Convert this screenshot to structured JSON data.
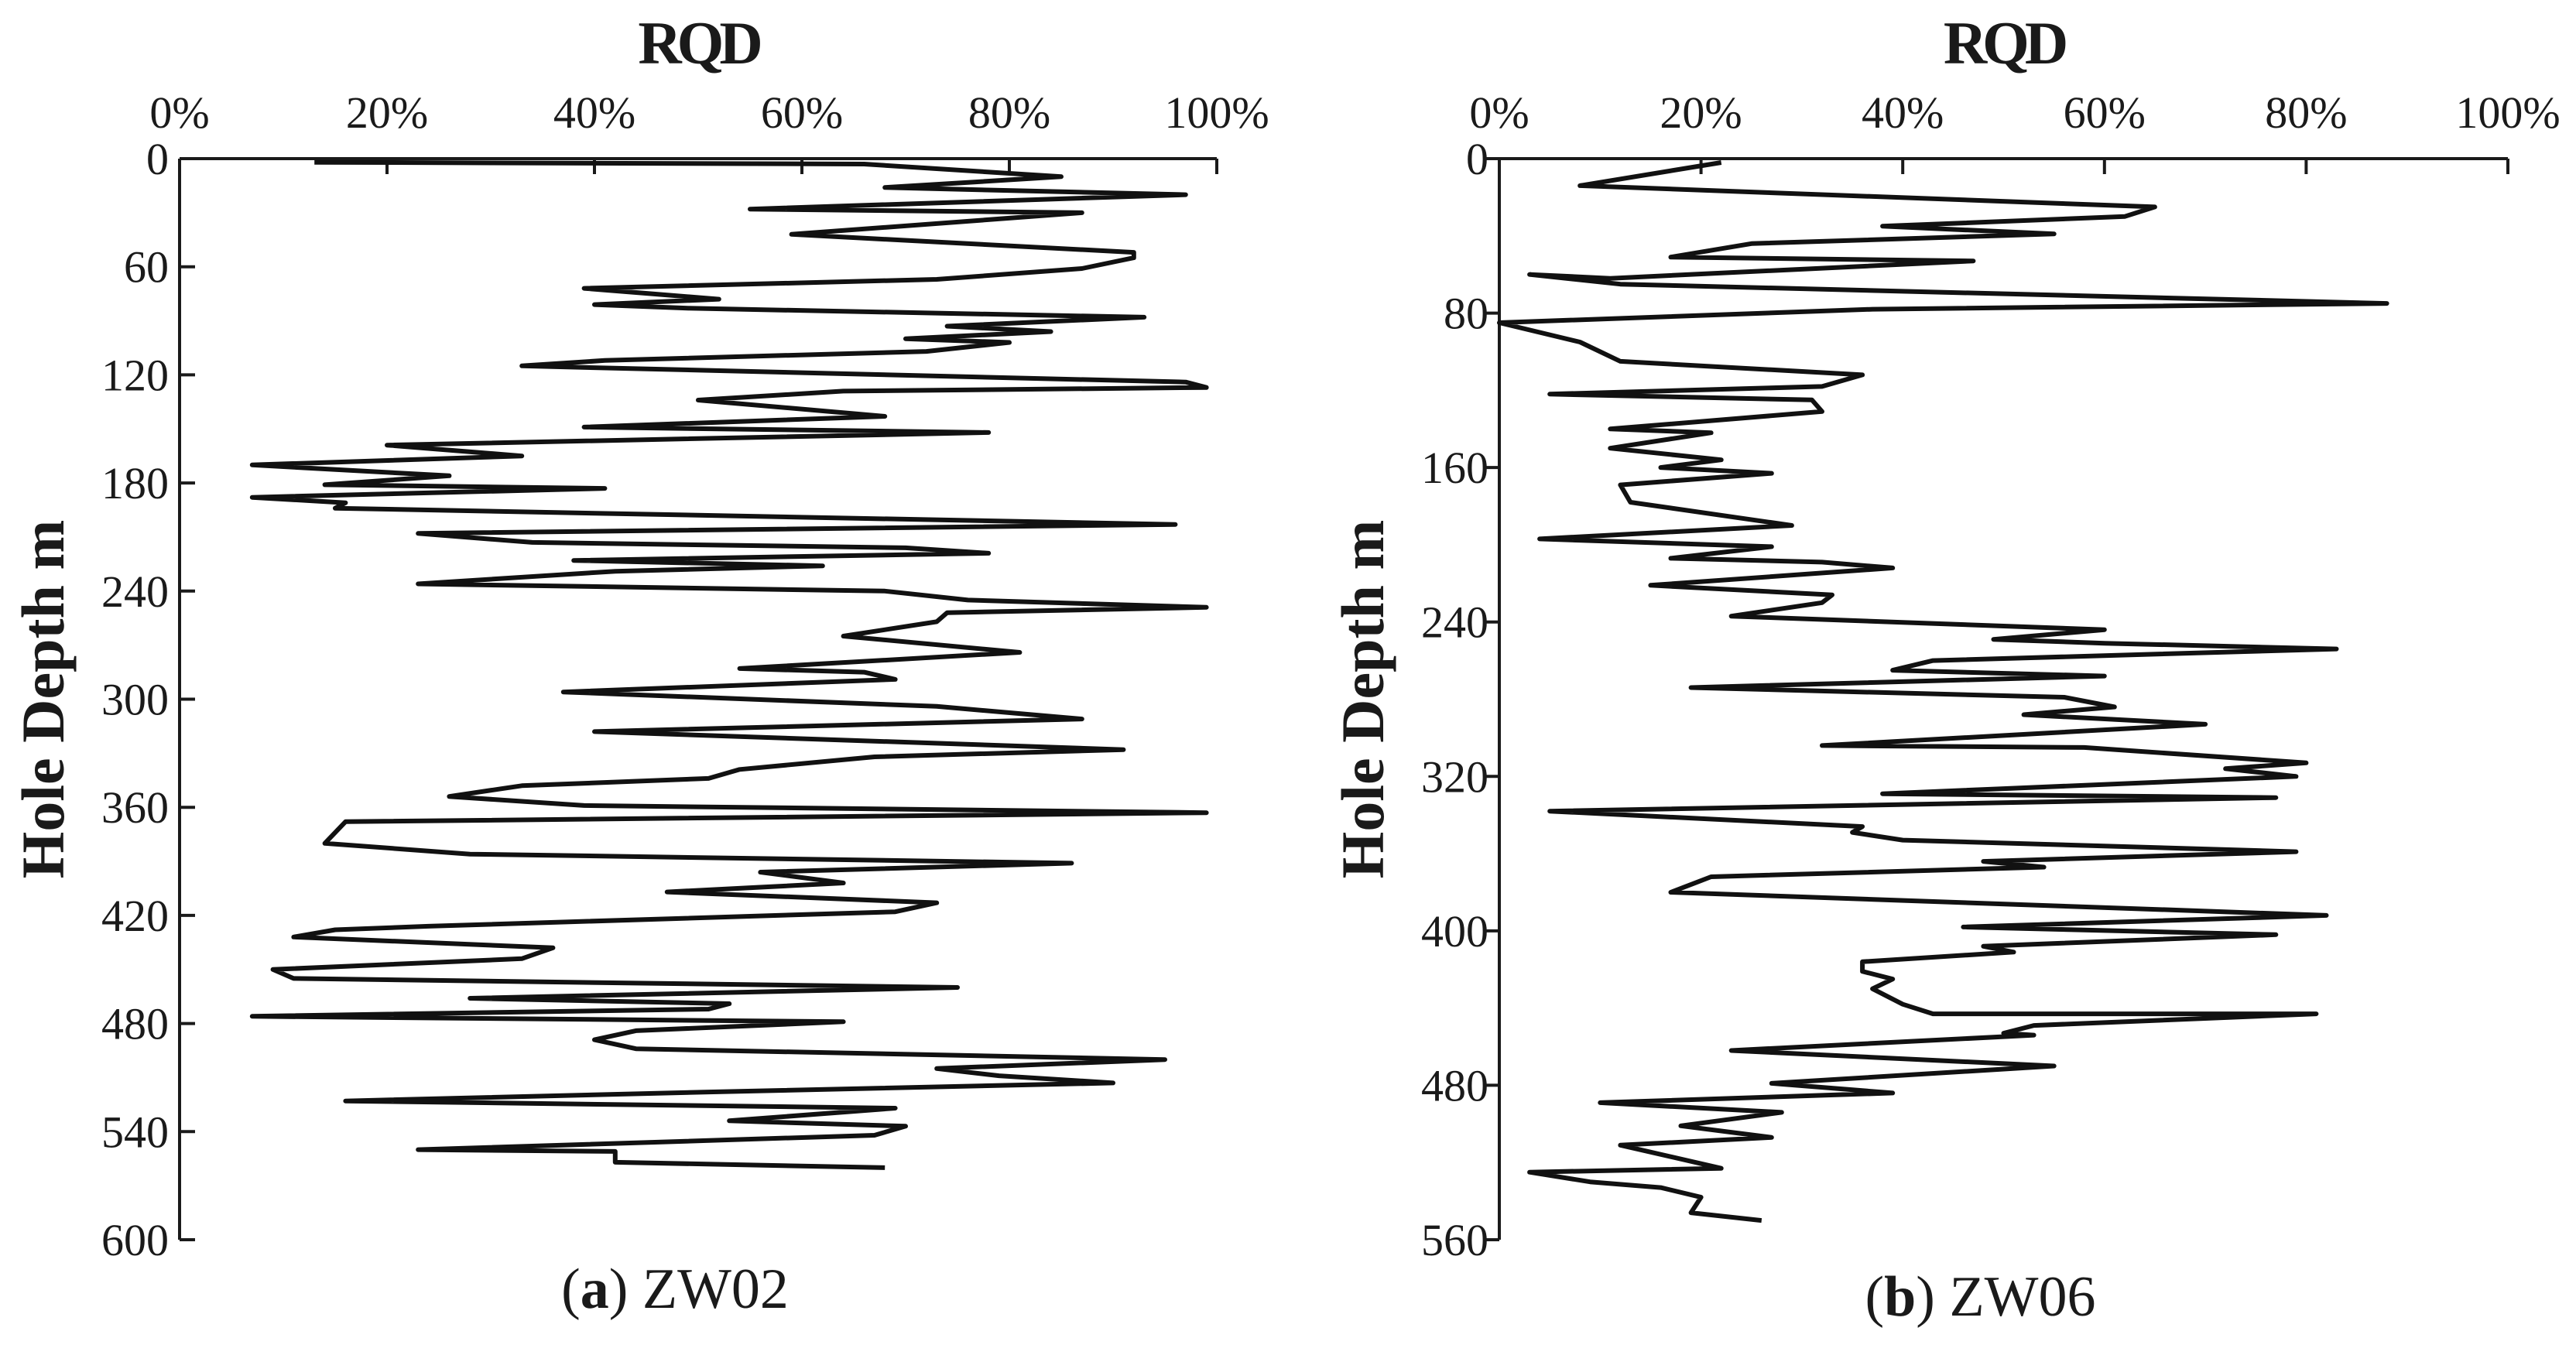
{
  "chart_data": [
    {
      "type": "line",
      "panel_label": "(a)",
      "caption": "ZW02",
      "title": "RQD",
      "xlabel": "RQD",
      "ylabel": "Hole Depth  m",
      "xlim": [
        0,
        100
      ],
      "ylim": [
        0,
        600
      ],
      "y_inverted": true,
      "x_axis_position": "top",
      "x_ticks": [
        "0%",
        "20%",
        "40%",
        "60%",
        "80%",
        "100%"
      ],
      "y_ticks": [
        "0",
        "60",
        "120",
        "180",
        "240",
        "300",
        "360",
        "420",
        "480",
        "540",
        "600"
      ],
      "series": [
        {
          "points": [
            [
              13,
              2
            ],
            [
              66,
              3
            ],
            [
              85,
              10
            ],
            [
              68,
              16
            ],
            [
              97,
              20
            ],
            [
              55,
              28
            ],
            [
              87,
              30
            ],
            [
              59,
              42
            ],
            [
              92,
              52
            ],
            [
              92,
              55
            ],
            [
              87,
              61
            ],
            [
              73,
              67
            ],
            [
              39,
              72
            ],
            [
              52,
              78
            ],
            [
              40,
              81
            ],
            [
              49,
              83
            ],
            [
              93,
              88
            ],
            [
              74,
              93
            ],
            [
              84,
              96
            ],
            [
              70,
              100
            ],
            [
              80,
              102
            ],
            [
              72,
              107
            ],
            [
              41,
              112
            ],
            [
              33,
              115
            ],
            [
              97,
              124
            ],
            [
              99,
              127
            ],
            [
              64,
              129
            ],
            [
              50,
              134
            ],
            [
              68,
              143
            ],
            [
              39,
              149
            ],
            [
              78,
              152
            ],
            [
              20,
              159
            ],
            [
              33,
              165
            ],
            [
              7,
              170
            ],
            [
              26,
              176
            ],
            [
              14,
              181
            ],
            [
              41,
              183
            ],
            [
              7,
              188
            ],
            [
              16,
              191
            ],
            [
              15,
              194
            ],
            [
              96,
              203
            ],
            [
              23,
              208
            ],
            [
              34,
              213
            ],
            [
              70,
              216
            ],
            [
              78,
              219
            ],
            [
              38,
              223
            ],
            [
              62,
              226
            ],
            [
              42,
              229
            ],
            [
              23,
              236
            ],
            [
              68,
              240
            ],
            [
              76,
              245
            ],
            [
              99,
              249
            ],
            [
              74,
              252
            ],
            [
              73,
              257
            ],
            [
              64,
              265
            ],
            [
              81,
              274
            ],
            [
              54,
              283
            ],
            [
              66,
              285
            ],
            [
              69,
              289
            ],
            [
              37,
              296
            ],
            [
              73,
              304
            ],
            [
              87,
              311
            ],
            [
              40,
              318
            ],
            [
              91,
              328
            ],
            [
              67,
              332
            ],
            [
              54,
              339
            ],
            [
              51,
              344
            ],
            [
              33,
              348
            ],
            [
              26,
              354
            ],
            [
              39,
              359
            ],
            [
              99,
              363
            ],
            [
              16,
              368
            ],
            [
              14,
              380
            ],
            [
              28,
              386
            ],
            [
              86,
              391
            ],
            [
              56,
              396
            ],
            [
              64,
              402
            ],
            [
              47,
              407
            ],
            [
              73,
              413
            ],
            [
              69,
              418
            ],
            [
              24,
              426
            ],
            [
              15,
              428
            ],
            [
              11,
              432
            ],
            [
              36,
              438
            ],
            [
              33,
              444
            ],
            [
              9,
              450
            ],
            [
              11,
              455
            ],
            [
              75,
              460
            ],
            [
              28,
              466
            ],
            [
              53,
              469
            ],
            [
              51,
              472
            ],
            [
              7,
              476
            ],
            [
              64,
              479
            ],
            [
              44,
              484
            ],
            [
              40,
              489
            ],
            [
              44,
              494
            ],
            [
              95,
              500
            ],
            [
              73,
              505
            ],
            [
              79,
              509
            ],
            [
              90,
              513
            ],
            [
              51,
              518
            ],
            [
              16,
              523
            ],
            [
              69,
              527
            ],
            [
              53,
              534
            ],
            [
              70,
              537
            ],
            [
              67,
              542
            ],
            [
              23,
              550
            ],
            [
              42,
              551
            ],
            [
              42,
              557
            ],
            [
              68,
              560
            ]
          ]
        }
      ]
    },
    {
      "type": "line",
      "panel_label": "(b)",
      "caption": "ZW06",
      "title": "RQD",
      "xlabel": "RQD",
      "ylabel": "Hole Depth  m",
      "xlim": [
        0,
        100
      ],
      "ylim": [
        0,
        560
      ],
      "y_inverted": true,
      "x_axis_position": "top",
      "x_ticks": [
        "0%",
        "20%",
        "40%",
        "60%",
        "80%",
        "100%"
      ],
      "y_ticks": [
        "0",
        "80",
        "160",
        "240",
        "320",
        "400",
        "480",
        "560"
      ],
      "series": [
        {
          "points": [
            [
              22,
              2
            ],
            [
              8,
              14
            ],
            [
              65,
              25
            ],
            [
              62,
              30
            ],
            [
              38,
              35
            ],
            [
              55,
              39
            ],
            [
              25,
              44
            ],
            [
              17,
              51
            ],
            [
              47,
              53
            ],
            [
              11,
              62
            ],
            [
              3,
              60
            ],
            [
              12,
              65
            ],
            [
              88,
              75
            ],
            [
              37,
              78
            ],
            [
              0,
              85
            ],
            [
              8,
              95
            ],
            [
              12,
              105
            ],
            [
              36,
              112
            ],
            [
              32,
              118
            ],
            [
              5,
              122
            ],
            [
              31,
              125
            ],
            [
              32,
              131
            ],
            [
              11,
              140
            ],
            [
              21,
              142
            ],
            [
              11,
              150
            ],
            [
              22,
              156
            ],
            [
              16,
              160
            ],
            [
              27,
              163
            ],
            [
              12,
              169
            ],
            [
              13,
              178
            ],
            [
              29,
              190
            ],
            [
              4,
              197
            ],
            [
              27,
              201
            ],
            [
              17,
              207
            ],
            [
              32,
              209
            ],
            [
              39,
              212
            ],
            [
              15,
              221
            ],
            [
              33,
              226
            ],
            [
              32,
              230
            ],
            [
              23,
              237
            ],
            [
              60,
              244
            ],
            [
              49,
              249
            ],
            [
              60,
              251
            ],
            [
              83,
              254
            ],
            [
              43,
              260
            ],
            [
              39,
              265
            ],
            [
              60,
              268
            ],
            [
              19,
              274
            ],
            [
              56,
              279
            ],
            [
              61,
              284
            ],
            [
              52,
              288
            ],
            [
              70,
              293
            ],
            [
              32,
              304
            ],
            [
              58,
              305
            ],
            [
              80,
              313
            ],
            [
              72,
              316
            ],
            [
              79,
              320
            ],
            [
              38,
              329
            ],
            [
              77,
              331
            ],
            [
              5,
              338
            ],
            [
              36,
              346
            ],
            [
              35,
              349
            ],
            [
              40,
              353
            ],
            [
              79,
              359
            ],
            [
              48,
              364
            ],
            [
              54,
              367
            ],
            [
              21,
              372
            ],
            [
              17,
              380
            ],
            [
              82,
              392
            ],
            [
              46,
              398
            ],
            [
              77,
              402
            ],
            [
              48,
              408
            ],
            [
              51,
              411
            ],
            [
              36,
              416
            ],
            [
              36,
              421
            ],
            [
              39,
              425
            ],
            [
              37,
              430
            ],
            [
              40,
              438
            ],
            [
              43,
              443
            ],
            [
              81,
              443
            ],
            [
              53,
              449
            ],
            [
              50,
              453
            ],
            [
              53,
              454
            ],
            [
              23,
              462
            ],
            [
              55,
              470
            ],
            [
              27,
              479
            ],
            [
              39,
              484
            ],
            [
              10,
              489
            ],
            [
              28,
              494
            ],
            [
              18,
              501
            ],
            [
              27,
              507
            ],
            [
              12,
              511
            ],
            [
              22,
              523
            ],
            [
              3,
              525
            ],
            [
              9,
              530
            ],
            [
              16,
              533
            ],
            [
              20,
              538
            ],
            [
              19,
              546
            ],
            [
              26,
              550
            ]
          ]
        }
      ]
    }
  ]
}
